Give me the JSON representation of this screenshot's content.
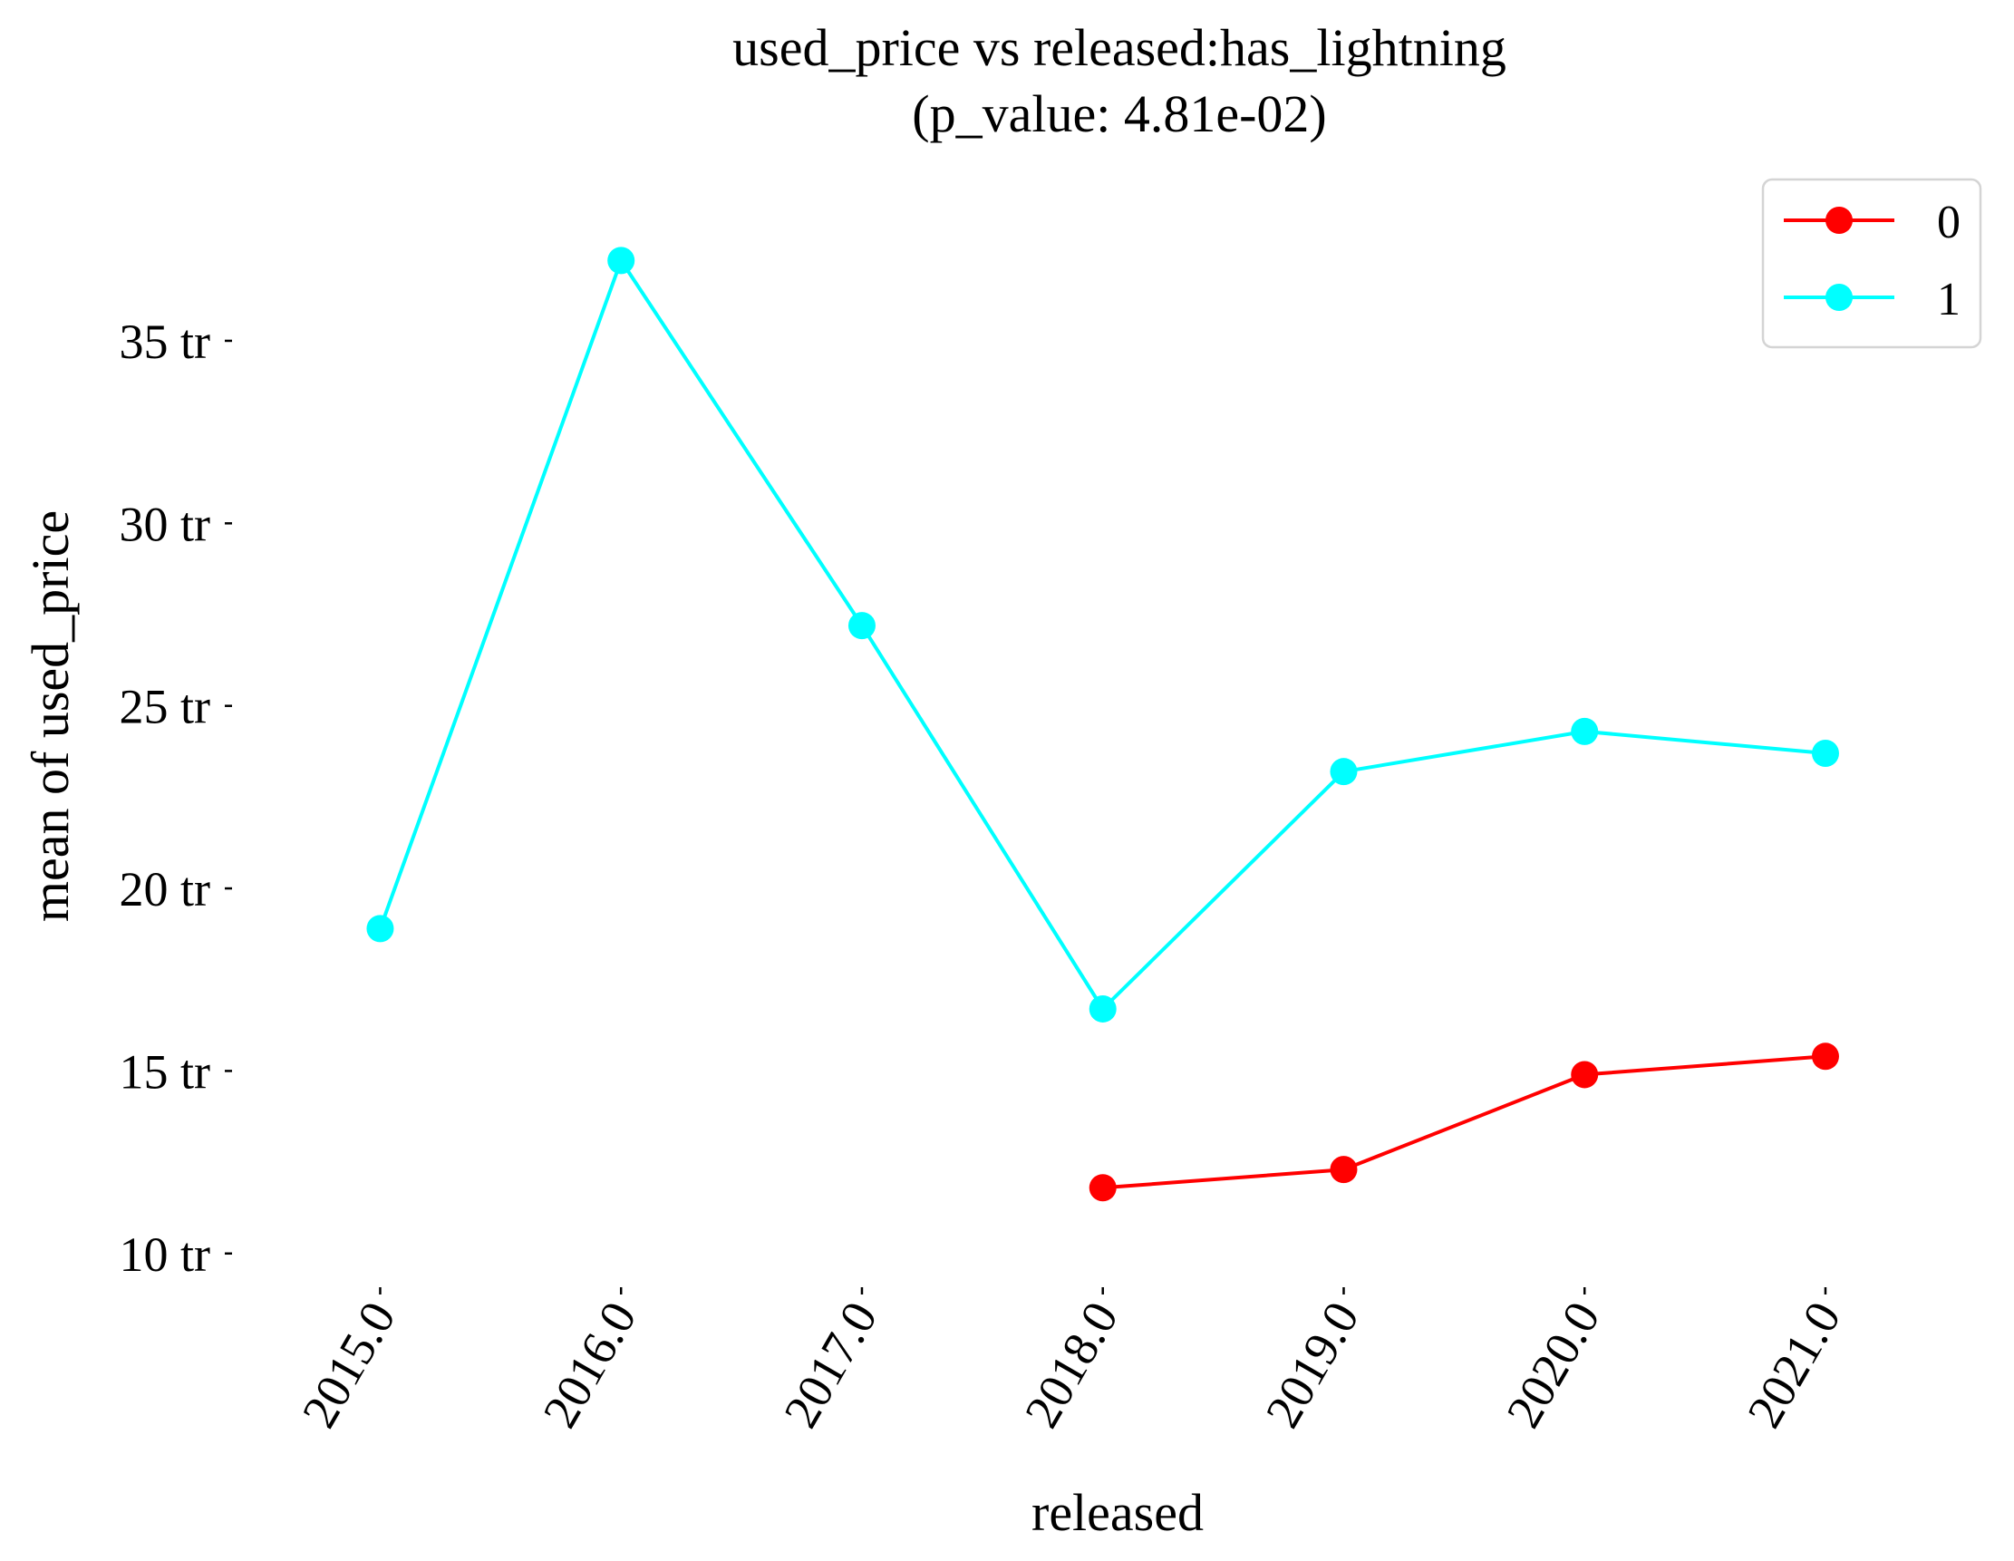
{
  "chart_data": {
    "type": "line",
    "title": "used_price vs released:has_lightning",
    "subtitle": "(p_value: 4.81e-02)",
    "xlabel": "released",
    "ylabel": "mean of used_price",
    "x": [
      2015,
      2016,
      2017,
      2018,
      2019,
      2020,
      2021
    ],
    "x_tick_labels": [
      "2015.0",
      "2016.0",
      "2017.0",
      "2018.0",
      "2019.0",
      "2020.0",
      "2021.0"
    ],
    "y_ticks": [
      10,
      15,
      20,
      25,
      30,
      35
    ],
    "y_tick_labels": [
      "10 tr",
      "15 tr",
      "20 tr",
      "25 tr",
      "30 tr",
      "35 tr"
    ],
    "ylim": [
      9.2,
      38.5
    ],
    "xlim": [
      2014.4,
      2021.7
    ],
    "grid": false,
    "legend_placement": "top-right",
    "series": [
      {
        "name": "0",
        "color": "#ff0000",
        "x": [
          2018,
          2019,
          2020,
          2021
        ],
        "values": [
          11.8,
          12.3,
          14.9,
          15.4
        ]
      },
      {
        "name": "1",
        "color": "#00ffff",
        "x": [
          2015,
          2016,
          2017,
          2018,
          2019,
          2020,
          2021
        ],
        "values": [
          18.9,
          37.2,
          27.2,
          16.7,
          23.2,
          24.3,
          23.7
        ]
      }
    ]
  }
}
